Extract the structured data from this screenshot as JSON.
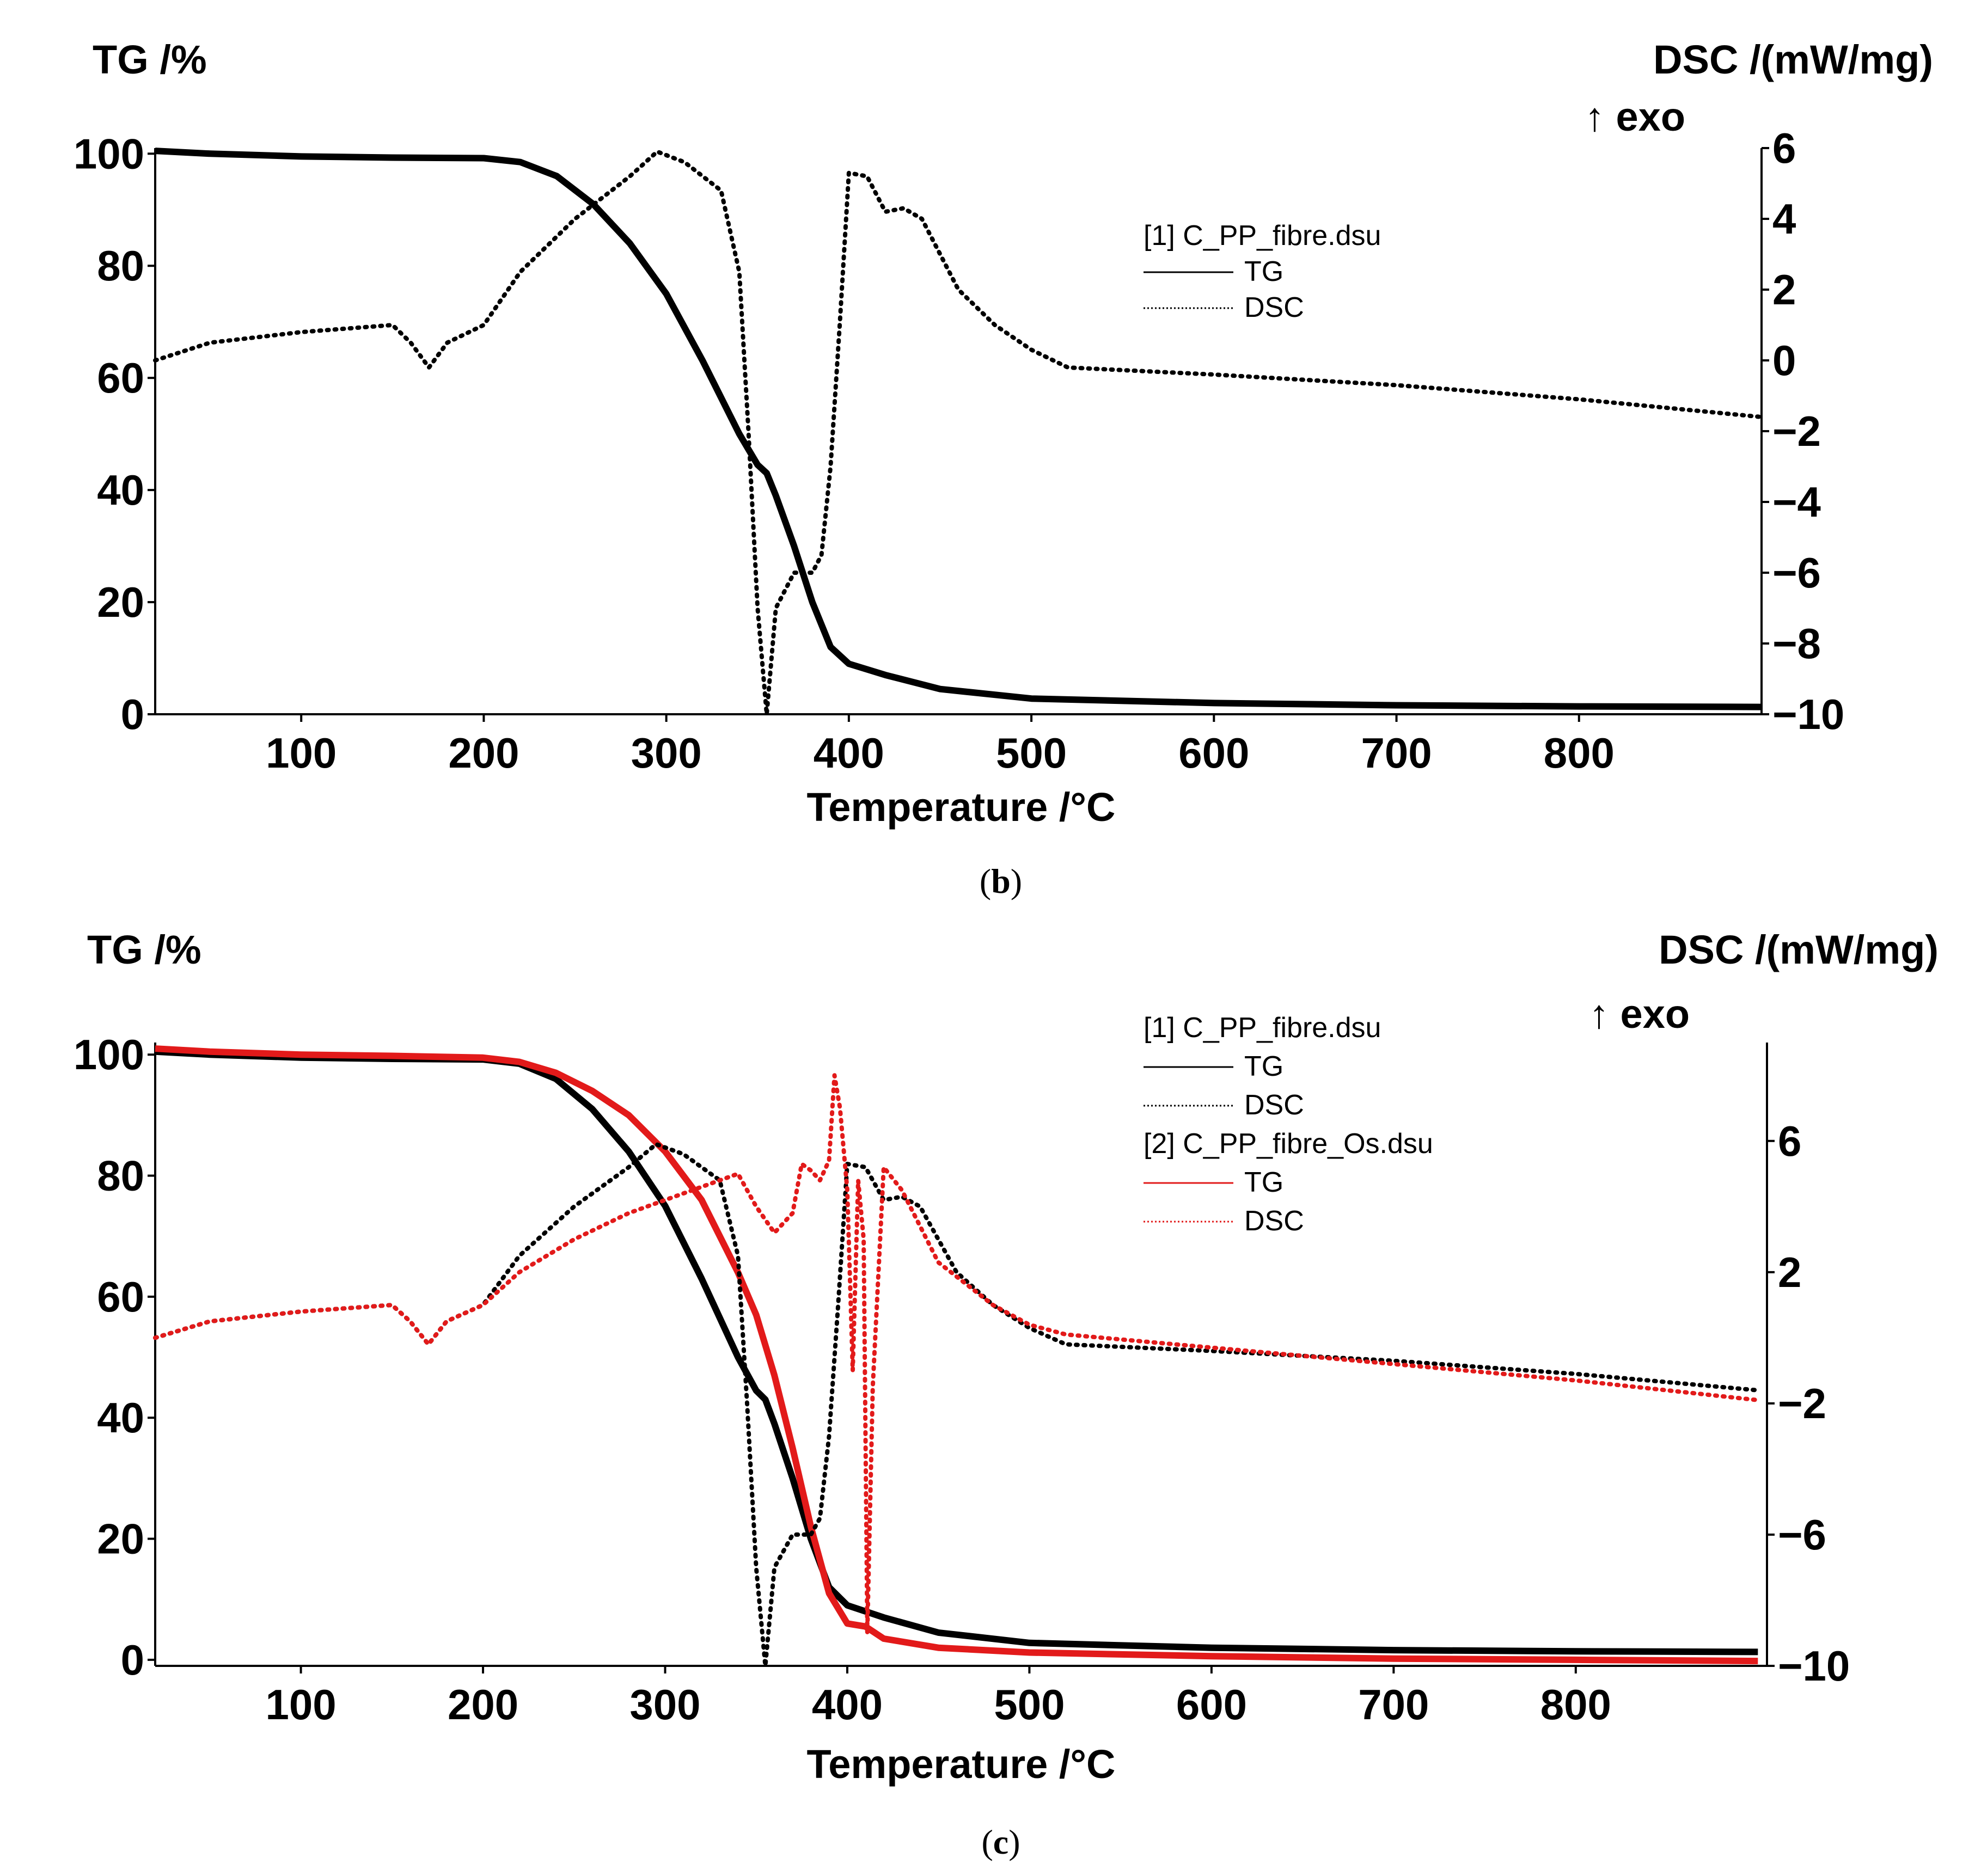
{
  "chart_data": [
    {
      "panel": "b",
      "caption_letter": "b",
      "type": "line",
      "y_left_title": "TG /%",
      "y_right_title": "DSC /(mW/mg)",
      "y_right_note": "↑ exo",
      "xlabel": "Temperature /°C",
      "xlim": [
        20,
        900
      ],
      "ylim_left": [
        0,
        101
      ],
      "ylim_right": [
        -10,
        6
      ],
      "x_ticks": [
        "100",
        "200",
        "300",
        "400",
        "500",
        "600",
        "700",
        "800"
      ],
      "y_left_ticks": [
        "0",
        "20",
        "40",
        "60",
        "80",
        "100"
      ],
      "y_right_ticks": [
        "−10",
        "−8",
        "−6",
        "−4",
        "−2",
        "0",
        "2",
        "4",
        "6"
      ],
      "legend": [
        {
          "file": "[1] C_PP_fibre.dsu",
          "entries": [
            {
              "label": "TG",
              "style": "solid",
              "color": "#000000"
            },
            {
              "label": "DSC",
              "style": "dotted",
              "color": "#000000"
            }
          ]
        }
      ],
      "series": [
        {
          "name": "TG",
          "file": "[1] C_PP_fibre.dsu",
          "axis": "left",
          "style": "solid",
          "color": "#000000",
          "x": [
            20,
            50,
            100,
            150,
            200,
            220,
            240,
            260,
            280,
            300,
            320,
            340,
            350,
            355,
            360,
            370,
            380,
            390,
            400,
            420,
            450,
            500,
            600,
            700,
            800,
            900
          ],
          "y": [
            100.5,
            100,
            99.5,
            99.3,
            99.2,
            98.5,
            96,
            91,
            84,
            75,
            63,
            50,
            44.5,
            43,
            39,
            30,
            20,
            12,
            9,
            7,
            4.5,
            2.8,
            2,
            1.6,
            1.4,
            1.3
          ]
        },
        {
          "name": "DSC",
          "file": "[1] C_PP_fibre.dsu",
          "axis": "right",
          "style": "dotted",
          "color": "#000000",
          "x": [
            20,
            50,
            100,
            150,
            160,
            170,
            180,
            200,
            220,
            250,
            280,
            295,
            310,
            320,
            330,
            340,
            345,
            350,
            355,
            360,
            370,
            380,
            385,
            390,
            395,
            400,
            410,
            420,
            430,
            440,
            450,
            460,
            480,
            500,
            520,
            600,
            700,
            800,
            900
          ],
          "y": [
            0,
            0.5,
            0.8,
            1.0,
            0.5,
            -0.2,
            0.5,
            1.0,
            2.5,
            4.0,
            5.2,
            5.9,
            5.6,
            5.2,
            4.8,
            2.5,
            -2,
            -7,
            -10,
            -7,
            -6,
            -6,
            -5.5,
            -3,
            1,
            5.3,
            5.2,
            4.2,
            4.3,
            4.0,
            3.0,
            2.0,
            1.0,
            0.3,
            -0.2,
            -0.4,
            -0.7,
            -1.1,
            -1.6
          ]
        }
      ]
    },
    {
      "panel": "c",
      "caption_letter": "c",
      "type": "line",
      "y_left_title": "TG /%",
      "y_right_title": "DSC /(mW/mg)",
      "y_right_note": "↑ exo",
      "xlabel": "Temperature /°C",
      "xlim": [
        20,
        905
      ],
      "ylim_left": [
        -1,
        102
      ],
      "ylim_right": [
        -10,
        9
      ],
      "x_ticks": [
        "100",
        "200",
        "300",
        "400",
        "500",
        "600",
        "700",
        "800"
      ],
      "y_left_ticks": [
        "0",
        "20",
        "40",
        "60",
        "80",
        "100"
      ],
      "y_right_ticks": [
        "−10",
        "−6",
        "−2",
        "2",
        "6"
      ],
      "legend": [
        {
          "file": "[1] C_PP_fibre.dsu",
          "entries": [
            {
              "label": "TG",
              "style": "solid",
              "color": "#000000"
            },
            {
              "label": "DSC",
              "style": "dotted",
              "color": "#000000"
            }
          ]
        },
        {
          "file": "[2] C_PP_fibre_Os.dsu",
          "entries": [
            {
              "label": "TG",
              "style": "solid",
              "color": "#e21a1a"
            },
            {
              "label": "DSC",
              "style": "dotted",
              "color": "#e21a1a"
            }
          ]
        }
      ],
      "series": [
        {
          "name": "TG",
          "file": "[1] C_PP_fibre.dsu",
          "axis": "left",
          "style": "solid",
          "color": "#000000",
          "x": [
            20,
            50,
            100,
            150,
            200,
            220,
            240,
            260,
            280,
            300,
            320,
            340,
            350,
            355,
            360,
            370,
            380,
            390,
            400,
            420,
            450,
            500,
            600,
            700,
            800,
            900
          ],
          "y": [
            100.5,
            100,
            99.5,
            99.3,
            99.2,
            98.5,
            96,
            91,
            84,
            75,
            63,
            50,
            44.5,
            43,
            39,
            30,
            20,
            12,
            9,
            7,
            4.5,
            2.8,
            2,
            1.6,
            1.4,
            1.3
          ]
        },
        {
          "name": "TG",
          "file": "[2] C_PP_fibre_Os.dsu",
          "axis": "left",
          "style": "solid",
          "color": "#e21a1a",
          "x": [
            20,
            50,
            100,
            150,
            200,
            220,
            240,
            260,
            280,
            300,
            320,
            340,
            350,
            360,
            370,
            380,
            390,
            400,
            410,
            420,
            450,
            500,
            600,
            700,
            800,
            900
          ],
          "y": [
            101,
            100.5,
            100,
            99.8,
            99.5,
            98.8,
            97,
            94,
            90,
            84,
            76,
            64,
            57,
            47,
            35,
            22,
            11,
            6,
            5.5,
            3.5,
            2,
            1.2,
            0.6,
            0.2,
            0,
            -0.2
          ]
        },
        {
          "name": "DSC",
          "file": "[1] C_PP_fibre.dsu",
          "axis": "right",
          "style": "dotted",
          "color": "#000000",
          "x": [
            20,
            50,
            100,
            150,
            160,
            170,
            180,
            200,
            220,
            250,
            280,
            295,
            310,
            320,
            330,
            340,
            345,
            350,
            355,
            360,
            370,
            380,
            385,
            390,
            395,
            400,
            410,
            420,
            430,
            440,
            450,
            460,
            480,
            500,
            520,
            600,
            700,
            800,
            900
          ],
          "y": [
            0,
            0.5,
            0.8,
            1.0,
            0.5,
            -0.2,
            0.5,
            1.0,
            2.5,
            4.0,
            5.2,
            5.9,
            5.6,
            5.2,
            4.8,
            2.5,
            -2,
            -7,
            -10,
            -7,
            -6,
            -6,
            -5.5,
            -3,
            1,
            5.3,
            5.2,
            4.2,
            4.3,
            4.0,
            3.0,
            2.0,
            1.0,
            0.3,
            -0.2,
            -0.4,
            -0.7,
            -1.1,
            -1.6
          ]
        },
        {
          "name": "DSC",
          "file": "[2] C_PP_fibre_Os.dsu",
          "axis": "right",
          "style": "dotted",
          "color": "#e21a1a",
          "x": [
            20,
            50,
            100,
            150,
            160,
            170,
            180,
            200,
            220,
            250,
            280,
            300,
            320,
            340,
            350,
            360,
            370,
            375,
            380,
            385,
            390,
            393,
            396,
            400,
            403,
            406,
            409,
            411,
            414,
            420,
            430,
            450,
            480,
            500,
            520,
            600,
            700,
            800,
            900
          ],
          "y": [
            0,
            0.5,
            0.8,
            1.0,
            0.5,
            -0.2,
            0.5,
            1.0,
            2.0,
            3.0,
            3.8,
            4.2,
            4.6,
            5.0,
            4.0,
            3.2,
            3.8,
            5.3,
            5.1,
            4.8,
            5.4,
            8.0,
            7.0,
            4.5,
            -1.0,
            4.8,
            3.0,
            -9.0,
            -1.5,
            5.2,
            4.5,
            2.3,
            1.0,
            0.4,
            0.1,
            -0.3,
            -0.8,
            -1.3,
            -1.9
          ]
        }
      ]
    }
  ]
}
